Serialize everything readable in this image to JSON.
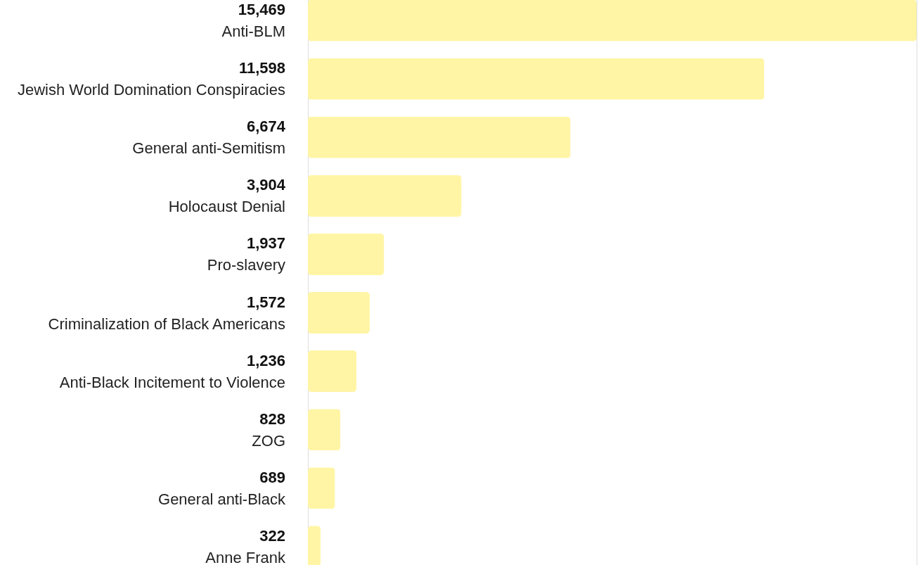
{
  "chart_data": {
    "type": "bar",
    "orientation": "horizontal",
    "color": "#fff5a5",
    "categories": [
      "Anti-BLM",
      "Jewish World Domination Conspiracies",
      "General anti-Semitism",
      "Holocaust Denial",
      "Pro-slavery",
      "Criminalization of Black Americans",
      "Anti-Black Incitement to Violence",
      "ZOG",
      "General anti-Black",
      "Anne Frank"
    ],
    "values": [
      15469,
      11598,
      6674,
      3904,
      1937,
      1572,
      1236,
      828,
      689,
      322
    ],
    "value_labels": [
      "15,469",
      "11,598",
      "6,674",
      "3,904",
      "1,937",
      "1,572",
      "1,236",
      "828",
      "689",
      "322"
    ]
  }
}
